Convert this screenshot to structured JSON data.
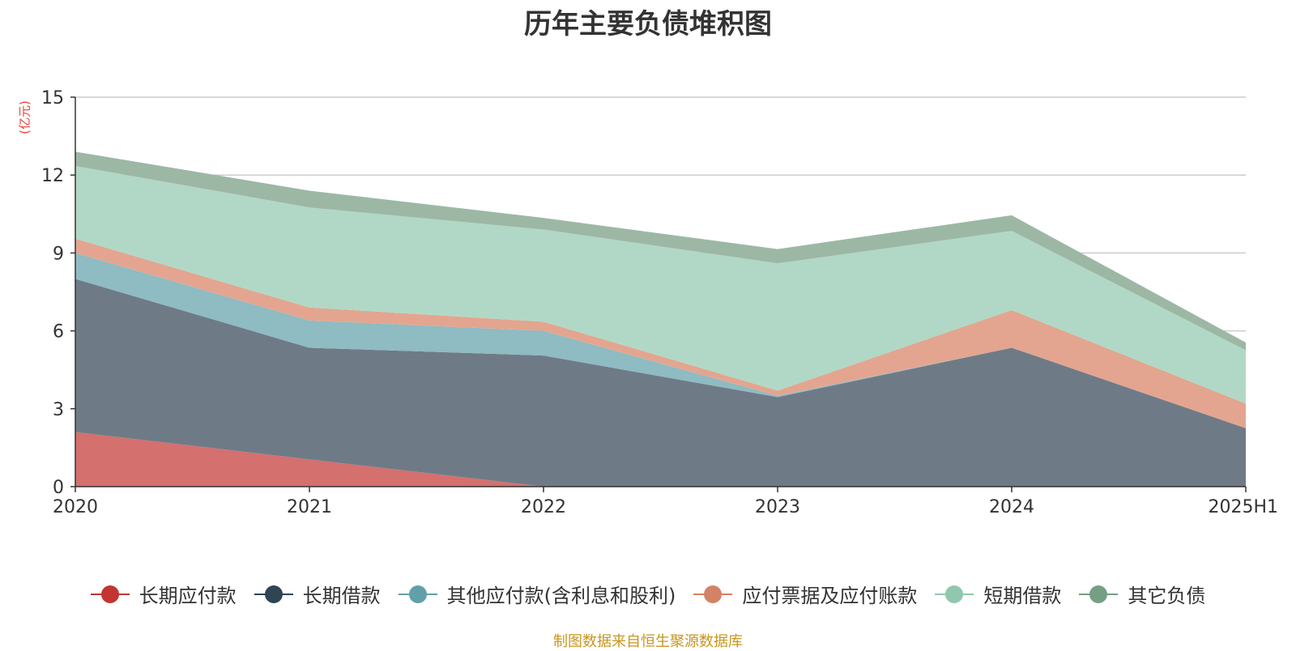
{
  "chart_data": {
    "type": "area",
    "stacked": true,
    "title": "历年主要负债堆积图",
    "ylabel": "(亿元)",
    "xlabel": "",
    "categories": [
      "2020",
      "2021",
      "2022",
      "2023",
      "2024",
      "2025H1"
    ],
    "ylim": [
      0,
      15
    ],
    "yticks": [
      0,
      3,
      6,
      9,
      12,
      15
    ],
    "grid": true,
    "legend_position": "bottom",
    "series": [
      {
        "name": "长期应付款",
        "color": "#c23531",
        "fill": "#d4706e",
        "values": [
          2.1,
          1.05,
          0.0,
          0.0,
          0.0,
          0.0
        ]
      },
      {
        "name": "长期借款",
        "color": "#2f4554",
        "fill": "#6e7b87",
        "values": [
          5.9,
          4.3,
          5.05,
          3.45,
          5.35,
          2.25
        ]
      },
      {
        "name": "其他应付款(含利息和股利)",
        "color": "#61a0a8",
        "fill": "#8fbbc2",
        "values": [
          1.0,
          1.05,
          0.95,
          0.05,
          0.0,
          0.0
        ]
      },
      {
        "name": "应付票据及应付账款",
        "color": "#d48265",
        "fill": "#e3a58f",
        "values": [
          0.55,
          0.5,
          0.35,
          0.2,
          1.45,
          0.95
        ]
      },
      {
        "name": "短期借款",
        "color": "#91c7ae",
        "fill": "#b1d8c6",
        "values": [
          2.8,
          3.85,
          3.55,
          4.9,
          3.05,
          2.05
        ]
      },
      {
        "name": "其它负债",
        "color": "#749f83",
        "fill": "#9cb8a5",
        "values": [
          0.55,
          0.65,
          0.45,
          0.55,
          0.6,
          0.3
        ]
      }
    ]
  },
  "footer": "制图数据来自恒生聚源数据库"
}
